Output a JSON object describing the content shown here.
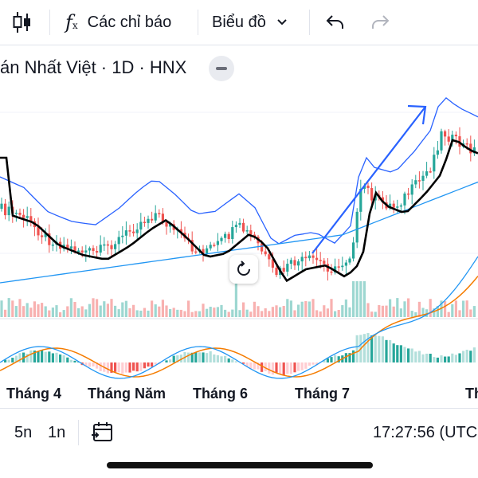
{
  "toolbar": {
    "indicators_label": "Các chỉ báo",
    "chart_type_label": "Biểu đồ"
  },
  "symbol": {
    "legend_text": "án Nhất Việt · 1D · HNX"
  },
  "colors": {
    "up": "#26a69a",
    "down": "#ef5350",
    "ma_line": "#000000",
    "bb_line": "#2962ff",
    "ma_long": "#2196f3",
    "macd_orange": "#f57c00",
    "trend_arrow": "#2962ff"
  },
  "xaxis": {
    "labels": [
      "Tháng 4",
      "Tháng Năm",
      "Tháng 6",
      "Tháng 7",
      "Th"
    ]
  },
  "bottom": {
    "range_5y": "5n",
    "range_1y": "1n",
    "time": "17:27:56 (UTC"
  },
  "icons": {
    "candles": "candlestick-icon",
    "fx": "indicator-fx-icon",
    "chevron": "chevron-down-icon",
    "undo": "undo-icon",
    "redo": "redo-icon",
    "collapse": "minus-icon",
    "reset": "reset-icon",
    "goto": "calendar-goto-icon"
  }
}
